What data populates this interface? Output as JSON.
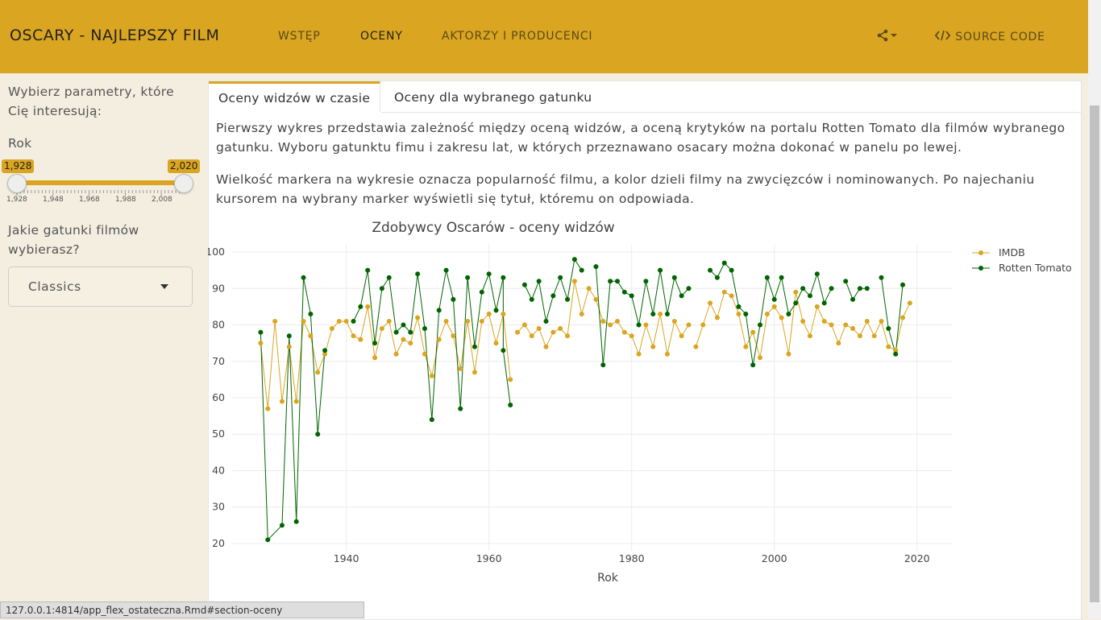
{
  "navbar": {
    "brand": "OSCARY - NAJLEPSZY FILM",
    "links": [
      "WSTĘP",
      "OCENY",
      "AKTORZY I PRODUCENCI"
    ],
    "source": "SOURCE CODE",
    "share_icon": "share-icon",
    "code_icon": "code-icon"
  },
  "sidebar": {
    "intro": "Wybierz parametry, które Cię interesują:",
    "year_label": "Rok",
    "slider": {
      "min_label": "1,928",
      "max_label": "2,020",
      "ticks": [
        "1,928",
        "1,948",
        "1,968",
        "1,988",
        "2,008"
      ],
      "min": 1928,
      "max": 2020
    },
    "genre_label": "Jakie gatunki filmów wybierasz?",
    "genre_value": "Classics"
  },
  "tabs": [
    "Oceny widzów w czasie",
    "Oceny dla wybranego gatunku"
  ],
  "paragraphs": [
    "Pierwszy wykres przedstawia zależność między oceną widzów, a oceną krytyków na portalu Rotten Tomato dla filmów wybranego gatunku. Wyboru gatunktu fimu i zakresu lat, w których przeznawano osacary można dokonać w panelu po lewej.",
    "Wielkość markera na wykresie oznacza popularność filmu, a kolor dzieli filmy na zwycięzców i nominowanych. Po najechaniu kursorem na wybrany marker wyświetli się tytuł, któremu on odpowiada."
  ],
  "status_url": "127.0.0.1:4814/app_flex_ostateczna.Rmd#section-oceny",
  "chart_data": {
    "type": "line",
    "title": "Zdobywcy Oscarów - oceny widzów",
    "xlabel": "Rok",
    "ylabel": "",
    "xlim": [
      1924,
      2025
    ],
    "ylim": [
      18,
      102
    ],
    "xticks": [
      1940,
      1960,
      1980,
      2000,
      2020
    ],
    "yticks": [
      20,
      30,
      40,
      50,
      60,
      70,
      80,
      90,
      100
    ],
    "grid": true,
    "legend": "top-right",
    "series": [
      {
        "name": "IMDB",
        "color": "#DAA520",
        "points": [
          [
            1928,
            75
          ],
          [
            1929,
            57
          ],
          [
            1930,
            81
          ],
          [
            1931,
            59
          ],
          [
            1932,
            74
          ],
          [
            1933,
            59
          ],
          [
            1934,
            81
          ],
          [
            1935,
            77
          ],
          [
            1936,
            67
          ],
          [
            1937,
            72
          ],
          [
            1938,
            79
          ],
          [
            1939,
            81
          ],
          [
            1940,
            81
          ],
          [
            1941,
            77
          ],
          [
            1942,
            76
          ],
          [
            1943,
            85
          ],
          [
            1944,
            71
          ],
          [
            1945,
            79
          ],
          [
            1946,
            81
          ],
          [
            1947,
            72
          ],
          [
            1948,
            76
          ],
          [
            1949,
            75
          ],
          [
            1950,
            82
          ],
          [
            1951,
            72
          ],
          [
            1952,
            66
          ],
          [
            1953,
            76
          ],
          [
            1954,
            81
          ],
          [
            1955,
            77
          ],
          [
            1956,
            68
          ],
          [
            1957,
            81
          ],
          [
            1958,
            67
          ],
          [
            1959,
            81
          ],
          [
            1960,
            83
          ],
          [
            1961,
            75
          ],
          [
            1962,
            83
          ],
          [
            1963,
            65
          ],
          null,
          [
            1964,
            78
          ],
          [
            1965,
            80
          ],
          [
            1966,
            77
          ],
          [
            1967,
            79
          ],
          [
            1968,
            74
          ],
          [
            1969,
            78
          ],
          [
            1970,
            79
          ],
          [
            1971,
            77
          ],
          [
            1972,
            92
          ],
          [
            1973,
            83
          ],
          [
            1974,
            90
          ],
          [
            1975,
            87
          ],
          [
            1976,
            81
          ],
          [
            1977,
            80
          ],
          [
            1978,
            81
          ],
          [
            1979,
            78
          ],
          [
            1980,
            77
          ],
          [
            1981,
            72
          ],
          [
            1982,
            80
          ],
          [
            1983,
            74
          ],
          [
            1984,
            83
          ],
          [
            1985,
            72
          ],
          [
            1986,
            81
          ],
          [
            1987,
            77
          ],
          [
            1988,
            80
          ],
          null,
          [
            1989,
            74
          ],
          [
            1990,
            80
          ],
          [
            1991,
            86
          ],
          [
            1992,
            82
          ],
          [
            1993,
            89
          ],
          [
            1994,
            88
          ],
          [
            1995,
            83
          ],
          [
            1996,
            74
          ],
          [
            1997,
            78
          ],
          [
            1998,
            71
          ],
          [
            1999,
            83
          ],
          [
            2000,
            85
          ],
          [
            2001,
            82
          ],
          [
            2002,
            72
          ],
          [
            2003,
            89
          ],
          [
            2004,
            81
          ],
          [
            2005,
            77
          ],
          [
            2006,
            85
          ],
          [
            2007,
            81
          ],
          [
            2008,
            80
          ],
          [
            2009,
            75
          ],
          [
            2010,
            80
          ],
          [
            2011,
            79
          ],
          [
            2012,
            77
          ],
          [
            2013,
            81
          ],
          [
            2014,
            77
          ],
          [
            2015,
            81
          ],
          [
            2016,
            74
          ],
          [
            2017,
            73
          ],
          [
            2018,
            82
          ],
          [
            2019,
            86
          ]
        ]
      },
      {
        "name": "Rotten Tomato",
        "color": "#006400",
        "points": [
          [
            1928,
            78
          ],
          [
            1929,
            21
          ],
          [
            1931,
            25
          ],
          [
            1932,
            77
          ],
          [
            1933,
            26
          ],
          [
            1934,
            93
          ],
          [
            1935,
            83
          ],
          [
            1936,
            50
          ],
          [
            1937,
            73
          ],
          null,
          [
            1941,
            81
          ],
          [
            1942,
            85
          ],
          [
            1943,
            95
          ],
          [
            1944,
            75
          ],
          [
            1945,
            90
          ],
          [
            1946,
            93
          ],
          [
            1947,
            78
          ],
          [
            1948,
            80
          ],
          [
            1949,
            78
          ],
          [
            1950,
            94
          ],
          [
            1951,
            79
          ],
          [
            1952,
            54
          ],
          [
            1953,
            84
          ],
          [
            1954,
            95
          ],
          [
            1955,
            87
          ],
          [
            1956,
            57
          ],
          [
            1957,
            93
          ],
          [
            1958,
            74
          ],
          [
            1959,
            89
          ],
          [
            1960,
            94
          ],
          [
            1961,
            84
          ],
          [
            1962,
            93
          ],
          [
            1962,
            73
          ],
          [
            1963,
            58
          ],
          null,
          [
            1965,
            91
          ],
          [
            1966,
            87
          ],
          [
            1967,
            92
          ],
          [
            1968,
            81
          ],
          [
            1969,
            88
          ],
          [
            1970,
            93
          ],
          [
            1971,
            87
          ],
          [
            1972,
            98
          ],
          [
            1973,
            95
          ],
          null,
          [
            1975,
            96
          ],
          [
            1976,
            69
          ],
          [
            1977,
            92
          ],
          [
            1978,
            92
          ],
          [
            1979,
            89
          ],
          [
            1980,
            88
          ],
          [
            1981,
            80
          ],
          [
            1982,
            92
          ],
          [
            1983,
            83
          ],
          [
            1984,
            95
          ],
          [
            1985,
            83
          ],
          [
            1986,
            93
          ],
          [
            1987,
            88
          ],
          [
            1988,
            90
          ],
          null,
          [
            1991,
            95
          ],
          [
            1992,
            93
          ],
          [
            1993,
            97
          ],
          [
            1994,
            95
          ],
          [
            1995,
            85
          ],
          [
            1996,
            83
          ],
          [
            1997,
            69
          ],
          [
            1998,
            80
          ],
          [
            1999,
            93
          ],
          [
            2000,
            87
          ],
          [
            2001,
            93
          ],
          [
            2002,
            83
          ],
          [
            2003,
            86
          ],
          [
            2004,
            90
          ],
          [
            2005,
            88
          ],
          [
            2006,
            94
          ],
          [
            2007,
            86
          ],
          [
            2008,
            90
          ],
          null,
          [
            2010,
            92
          ],
          [
            2011,
            87
          ],
          [
            2012,
            90
          ],
          [
            2013,
            90
          ],
          null,
          [
            2015,
            93
          ],
          [
            2016,
            79
          ],
          [
            2017,
            72
          ],
          [
            2018,
            91
          ]
        ]
      }
    ]
  }
}
